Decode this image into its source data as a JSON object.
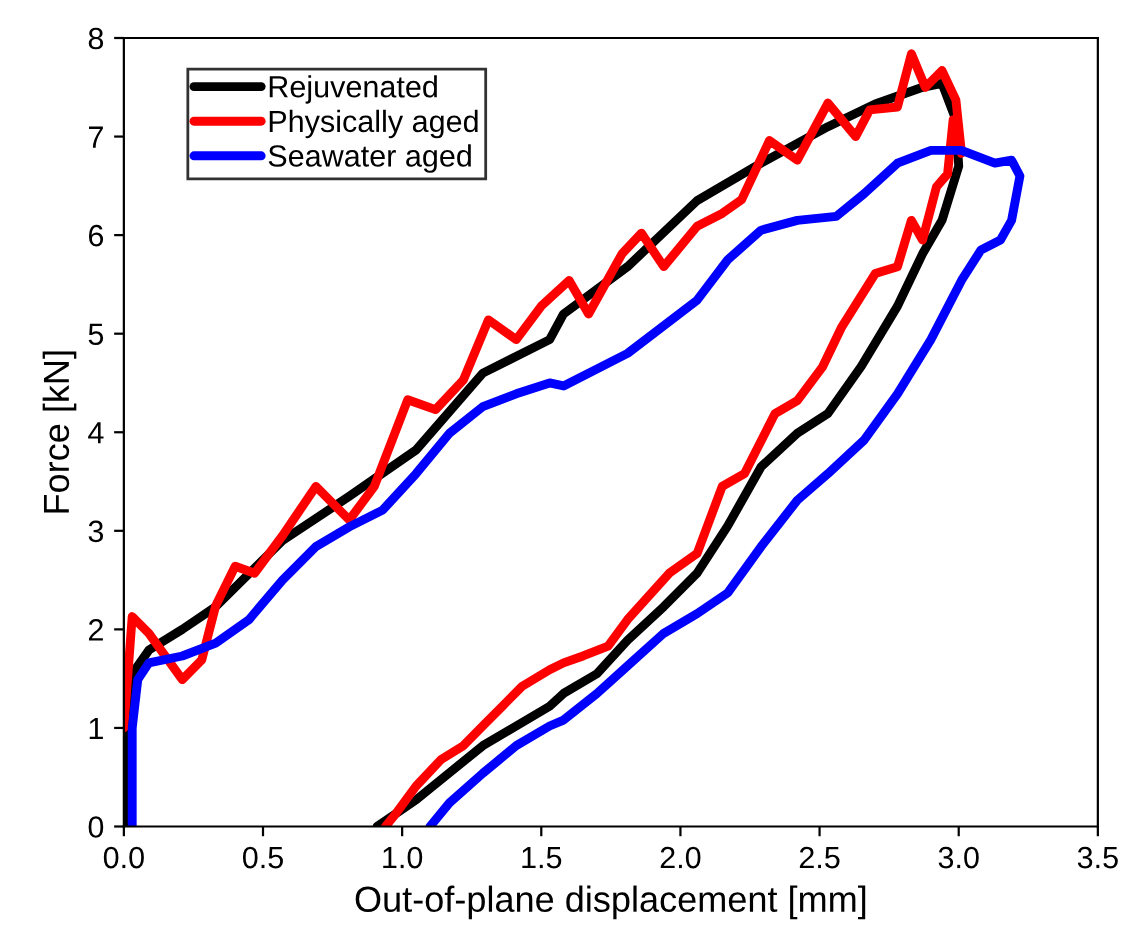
{
  "chart_data": {
    "type": "line",
    "xlabel": "Out-of-plane displacement [mm]",
    "ylabel": "Force [kN]",
    "xlim": [
      0,
      3.5
    ],
    "xticks": [
      {
        "value": 0,
        "label": "0.0"
      },
      0.5,
      {
        "value": 1,
        "label": "1.0"
      },
      1.5,
      {
        "value": 2,
        "label": "2.0"
      },
      2.5,
      {
        "value": 3,
        "label": "3.0"
      },
      3.5
    ],
    "ylim": [
      0,
      8
    ],
    "yticks": [
      0,
      1,
      2,
      3,
      4,
      5,
      6,
      7,
      8
    ],
    "grid": false,
    "legend": "top left",
    "marker": "none",
    "line_style": "solid",
    "series": [
      {
        "name": "Rejuvenated",
        "color": "#000000",
        "x": [
          0.0,
          0.02,
          0.03,
          0.09,
          0.21,
          0.33,
          0.57,
          0.81,
          1.05,
          1.29,
          1.53,
          1.58,
          1.81,
          2.06,
          2.29,
          2.53,
          2.7,
          2.87,
          2.94,
          2.99,
          3.0,
          2.94,
          2.87,
          2.78,
          2.65,
          2.53,
          2.42,
          2.29,
          2.17,
          2.06,
          1.94,
          1.81,
          1.7,
          1.58,
          1.53,
          1.29,
          1.05,
          0.91
        ],
        "values": [
          0,
          1.3,
          1.55,
          1.79,
          2.0,
          2.23,
          2.9,
          3.35,
          3.82,
          4.6,
          4.94,
          5.2,
          5.68,
          6.35,
          6.73,
          7.1,
          7.33,
          7.5,
          7.54,
          7.17,
          6.7,
          6.15,
          5.81,
          5.28,
          4.67,
          4.19,
          3.99,
          3.65,
          3.05,
          2.57,
          2.23,
          1.89,
          1.55,
          1.35,
          1.22,
          0.82,
          0.27,
          0
        ]
      },
      {
        "name": "Physically aged",
        "color": "#ff0000",
        "x": [
          0.0,
          0.03,
          0.09,
          0.21,
          0.28,
          0.33,
          0.4,
          0.47,
          0.57,
          0.69,
          0.81,
          0.9,
          1.02,
          1.12,
          1.22,
          1.31,
          1.41,
          1.5,
          1.6,
          1.67,
          1.79,
          1.86,
          1.94,
          2.06,
          2.15,
          2.22,
          2.32,
          2.42,
          2.53,
          2.63,
          2.68,
          2.78,
          2.83,
          2.88,
          2.94,
          2.99,
          3.01,
          2.98,
          2.96,
          2.92,
          2.87,
          2.83,
          2.78,
          2.7,
          2.58,
          2.51,
          2.42,
          2.34,
          2.23,
          2.15,
          2.06,
          1.96,
          1.81,
          1.74,
          1.65,
          1.58,
          1.53,
          1.43,
          1.36,
          1.29,
          1.22,
          1.14,
          1.05,
          0.98,
          0.94
        ],
        "values": [
          1.0,
          2.13,
          1.96,
          1.49,
          1.69,
          2.24,
          2.64,
          2.57,
          2.95,
          3.45,
          3.11,
          3.45,
          4.33,
          4.23,
          4.53,
          5.14,
          4.94,
          5.28,
          5.54,
          5.2,
          5.81,
          6.02,
          5.68,
          6.09,
          6.22,
          6.36,
          6.96,
          6.76,
          7.34,
          7.0,
          7.27,
          7.3,
          7.84,
          7.5,
          7.67,
          7.37,
          6.83,
          7.17,
          6.62,
          6.49,
          5.95,
          6.15,
          5.68,
          5.61,
          5.07,
          4.66,
          4.32,
          4.19,
          3.58,
          3.45,
          2.77,
          2.57,
          2.1,
          1.83,
          1.73,
          1.66,
          1.59,
          1.42,
          1.22,
          1.02,
          0.82,
          0.68,
          0.41,
          0.14,
          0
        ]
      },
      {
        "name": "Seawater aged",
        "color": "#0000ff",
        "x": [
          0.03,
          0.03,
          0.05,
          0.09,
          0.21,
          0.33,
          0.45,
          0.57,
          0.69,
          0.81,
          0.93,
          1.05,
          1.17,
          1.29,
          1.41,
          1.53,
          1.58,
          1.81,
          2.06,
          2.17,
          2.29,
          2.42,
          2.56,
          2.66,
          2.78,
          2.9,
          3.01,
          3.13,
          3.19,
          3.22,
          3.19,
          3.15,
          3.08,
          3.01,
          2.9,
          2.78,
          2.66,
          2.53,
          2.42,
          2.29,
          2.17,
          2.06,
          1.94,
          1.81,
          1.7,
          1.58,
          1.53,
          1.41,
          1.29,
          1.17,
          1.1
        ],
        "values": [
          0,
          1.0,
          1.49,
          1.66,
          1.73,
          1.86,
          2.1,
          2.5,
          2.84,
          3.04,
          3.21,
          3.58,
          3.99,
          4.26,
          4.39,
          4.5,
          4.47,
          4.8,
          5.34,
          5.75,
          6.05,
          6.15,
          6.19,
          6.42,
          6.73,
          6.86,
          6.86,
          6.73,
          6.76,
          6.6,
          6.15,
          5.95,
          5.85,
          5.54,
          4.94,
          4.39,
          3.92,
          3.58,
          3.31,
          2.84,
          2.37,
          2.16,
          1.96,
          1.63,
          1.35,
          1.08,
          1.02,
          0.82,
          0.54,
          0.24,
          0
        ]
      }
    ]
  }
}
